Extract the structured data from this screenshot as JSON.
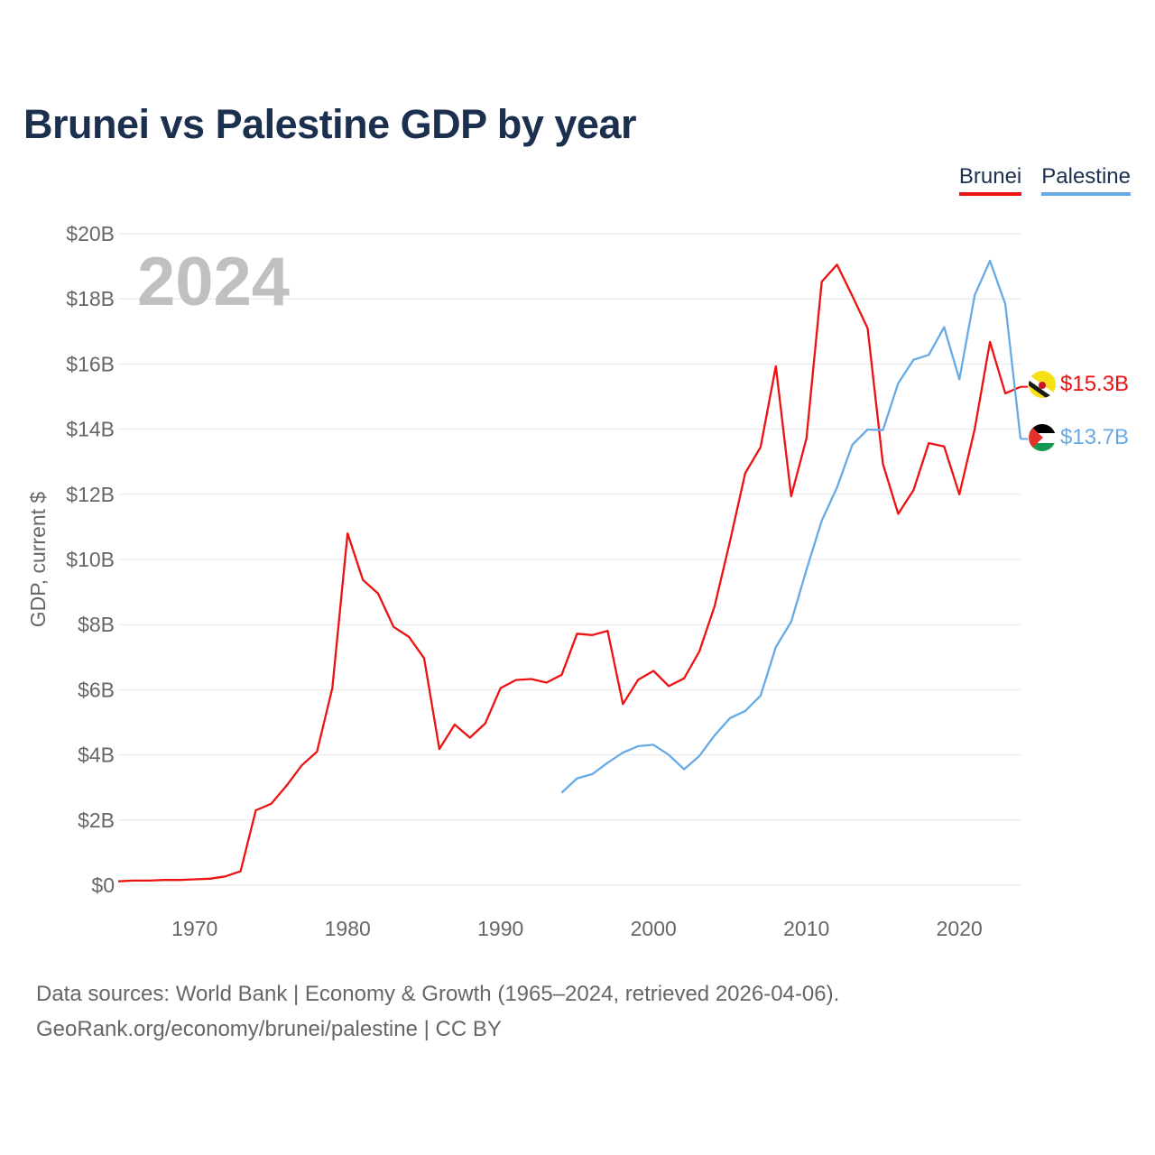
{
  "title": "Brunei vs Palestine GDP by year",
  "year_badge": "2024",
  "legend": [
    {
      "label": "Brunei",
      "color": "#ee1111"
    },
    {
      "label": "Palestine",
      "color": "#66aae6"
    }
  ],
  "end_labels": {
    "brunei": "$15.3B",
    "palestine": "$13.7B"
  },
  "flags": {
    "brunei": "brunei-flag-icon",
    "palestine": "palestine-flag-icon"
  },
  "colors": {
    "title": "#1b2f4f",
    "axis_text": "#666666",
    "grid": "#e6e6e6",
    "badge": "#c0c0c0"
  },
  "source": {
    "line1": "Data sources: World Bank | Economy & Growth (1965–2024, retrieved 2026-04-06).",
    "line2": "GeoRank.org/economy/brunei/palestine | CC BY"
  },
  "chart_data": {
    "type": "line",
    "title": "Brunei vs Palestine GDP by year",
    "xlabel": "",
    "ylabel": "GDP, current $",
    "xlim": [
      1965,
      2024
    ],
    "ylim": [
      0,
      20
    ],
    "y_unit": "billion USD",
    "x_ticks": [
      1970,
      1980,
      1990,
      2000,
      2010,
      2020
    ],
    "x_tick_labels": [
      "1970",
      "1980",
      "1990",
      "2000",
      "2010",
      "2020"
    ],
    "y_ticks": [
      0,
      2,
      4,
      6,
      8,
      10,
      12,
      14,
      16,
      18,
      20
    ],
    "y_tick_labels": [
      "$0",
      "$2B",
      "$4B",
      "$6B",
      "$8B",
      "$10B",
      "$12B",
      "$14B",
      "$16B",
      "$18B",
      "$20B"
    ],
    "grid": true,
    "legend_position": "top-right",
    "series": [
      {
        "name": "Brunei",
        "color": "#ee1111",
        "x": [
          1965,
          1966,
          1967,
          1968,
          1969,
          1970,
          1971,
          1972,
          1973,
          1974,
          1975,
          1976,
          1977,
          1978,
          1979,
          1980,
          1981,
          1982,
          1983,
          1984,
          1985,
          1986,
          1987,
          1988,
          1989,
          1990,
          1991,
          1992,
          1993,
          1994,
          1995,
          1996,
          1997,
          1998,
          1999,
          2000,
          2001,
          2002,
          2003,
          2004,
          2005,
          2006,
          2007,
          2008,
          2009,
          2010,
          2011,
          2012,
          2013,
          2014,
          2015,
          2016,
          2017,
          2018,
          2019,
          2020,
          2021,
          2022,
          2023,
          2024
        ],
        "values": [
          0.12,
          0.14,
          0.14,
          0.16,
          0.16,
          0.18,
          0.2,
          0.27,
          0.43,
          2.3,
          2.5,
          3.05,
          3.68,
          4.1,
          6.05,
          10.8,
          9.37,
          8.95,
          7.93,
          7.63,
          6.97,
          4.18,
          4.93,
          4.53,
          4.97,
          6.05,
          6.3,
          6.33,
          6.22,
          6.46,
          7.72,
          7.68,
          7.81,
          5.56,
          6.31,
          6.58,
          6.11,
          6.35,
          7.18,
          8.57,
          10.56,
          12.65,
          13.45,
          15.93,
          11.94,
          13.71,
          18.53,
          19.05,
          18.09,
          17.1,
          12.93,
          11.4,
          12.13,
          13.57,
          13.47,
          12.0,
          14.0,
          16.68,
          15.1,
          15.3
        ]
      },
      {
        "name": "Palestine",
        "color": "#66aae6",
        "x": [
          1994,
          1995,
          1996,
          1997,
          1998,
          1999,
          2000,
          2001,
          2002,
          2003,
          2004,
          2005,
          2006,
          2007,
          2008,
          2009,
          2010,
          2011,
          2012,
          2013,
          2014,
          2015,
          2016,
          2017,
          2018,
          2019,
          2020,
          2021,
          2022,
          2023,
          2024
        ],
        "values": [
          2.84,
          3.28,
          3.41,
          3.76,
          4.07,
          4.27,
          4.31,
          4.0,
          3.56,
          3.97,
          4.6,
          5.13,
          5.35,
          5.82,
          7.31,
          8.09,
          9.68,
          11.19,
          12.21,
          13.52,
          13.99,
          13.97,
          15.41,
          16.13,
          16.28,
          17.13,
          15.53,
          18.11,
          19.17,
          17.84,
          13.7
        ]
      }
    ]
  }
}
